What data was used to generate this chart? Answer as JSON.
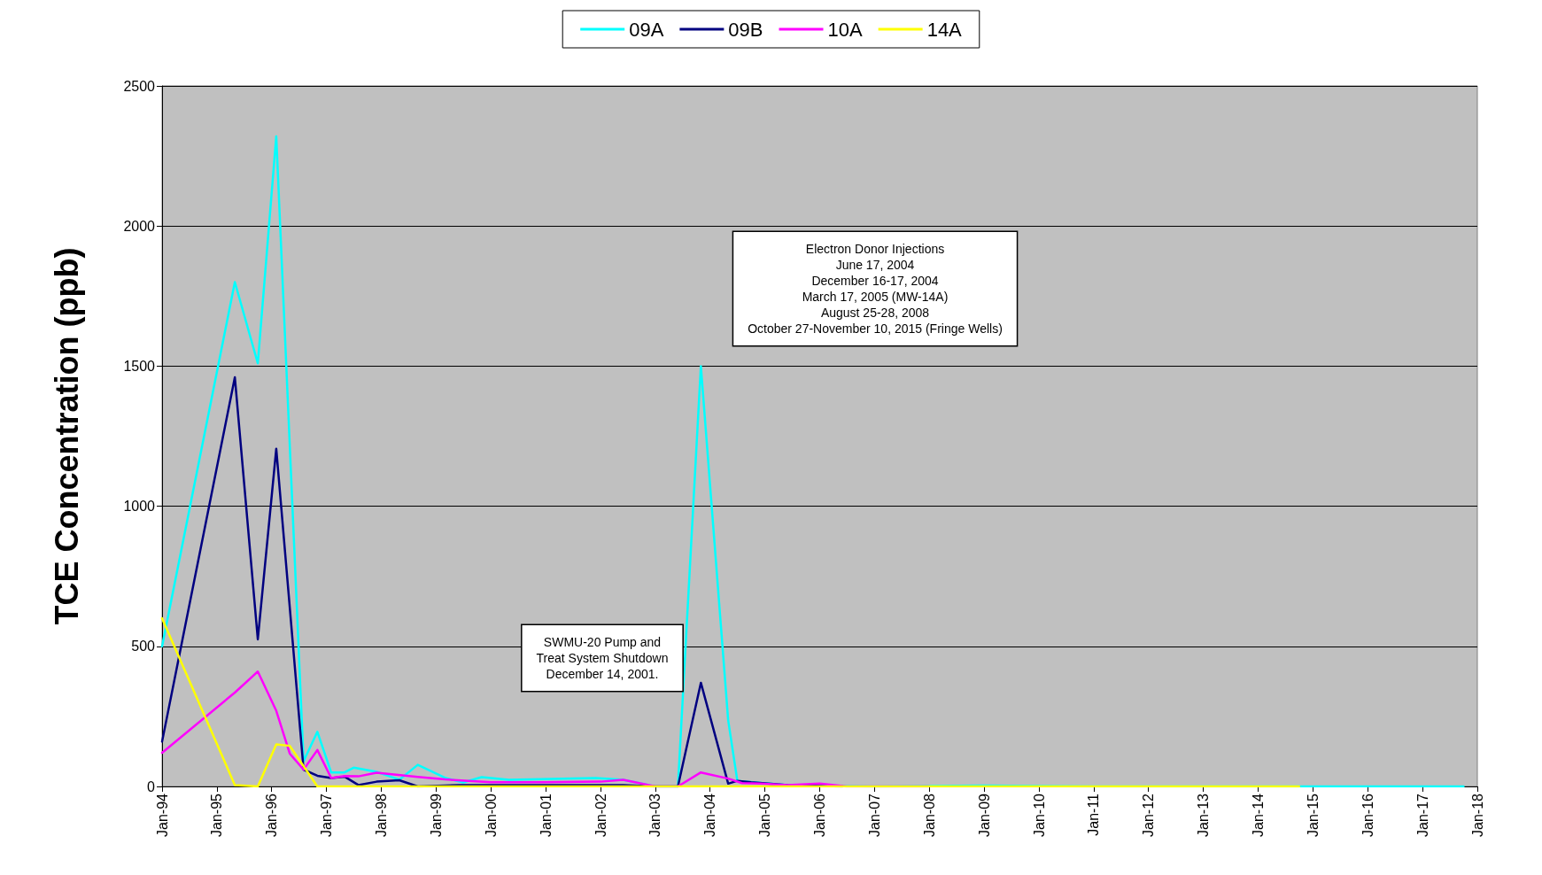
{
  "chart_data": {
    "type": "line",
    "ylabel": "TCE Concentration (ppb)",
    "xlim": [
      "1994-01",
      "2018-01"
    ],
    "xticks": [
      {
        "value": "1994-01",
        "label": "Jan-94"
      },
      {
        "value": "1995-01",
        "label": "Jan-95"
      },
      {
        "value": "1996-01",
        "label": "Jan-96"
      },
      {
        "value": "1997-01",
        "label": "Jan-97"
      },
      {
        "value": "1998-01",
        "label": "Jan-98"
      },
      {
        "value": "1999-01",
        "label": "Jan-99"
      },
      {
        "value": "2000-01",
        "label": "Jan-00"
      },
      {
        "value": "2001-01",
        "label": "Jan-01"
      },
      {
        "value": "2002-01",
        "label": "Jan-02"
      },
      {
        "value": "2003-01",
        "label": "Jan-03"
      },
      {
        "value": "2004-01",
        "label": "Jan-04"
      },
      {
        "value": "2005-01",
        "label": "Jan-05"
      },
      {
        "value": "2006-01",
        "label": "Jan-06"
      },
      {
        "value": "2007-01",
        "label": "Jan-07"
      },
      {
        "value": "2008-01",
        "label": "Jan-08"
      },
      {
        "value": "2009-01",
        "label": "Jan-09"
      },
      {
        "value": "2010-01",
        "label": "Jan-10"
      },
      {
        "value": "2011-01",
        "label": "Jan-11"
      },
      {
        "value": "2012-01",
        "label": "Jan-12"
      },
      {
        "value": "2013-01",
        "label": "Jan-13"
      },
      {
        "value": "2014-01",
        "label": "Jan-14"
      },
      {
        "value": "2015-01",
        "label": "Jan-15"
      },
      {
        "value": "2016-01",
        "label": "Jan-16"
      },
      {
        "value": "2017-01",
        "label": "Jan-17"
      },
      {
        "value": "2018-01",
        "label": "Jan-18"
      }
    ],
    "ylim": [
      0,
      2500
    ],
    "yticks": [
      0,
      500,
      1000,
      1500,
      2000,
      2500
    ],
    "grid": "y",
    "legend": "top",
    "marker": "none",
    "line_style": "solid",
    "series": [
      {
        "name": "09A",
        "color": "#00ffff",
        "x": [
          "1994-01",
          "1995-05",
          "1995-10",
          "1996-02",
          "1996-08",
          "1996-11",
          "1997-02",
          "1997-05",
          "1997-07",
          "1997-12",
          "1998-05",
          "1998-09",
          "1999-03",
          "1999-07",
          "1999-11",
          "2000-05",
          "2001-12",
          "2002-06",
          "2003-01",
          "2003-06",
          "2003-11",
          "2004-05",
          "2004-07",
          "2005-06",
          "2007-01",
          "2009-01",
          "2011-01",
          "2013-01",
          "2015-01",
          "2017-10"
        ],
        "values": [
          500,
          1800,
          1510,
          2320,
          90,
          195,
          50,
          50,
          67,
          52,
          24,
          77,
          31,
          14,
          33,
          24,
          30,
          24,
          0,
          0,
          1500,
          236,
          20,
          5,
          0,
          3,
          0,
          0,
          0,
          0
        ]
      },
      {
        "name": "09B",
        "color": "#000080",
        "x": [
          "1994-01",
          "1995-05",
          "1995-10",
          "1996-02",
          "1996-08",
          "1996-11",
          "1997-02",
          "1997-05",
          "1997-08",
          "1997-12",
          "1998-05",
          "1998-09",
          "1999-06",
          "2000-06",
          "2001-06",
          "2002-06",
          "2003-01",
          "2003-06",
          "2003-11",
          "2004-05",
          "2004-07",
          "2004-10",
          "2005-06",
          "2006-06"
        ],
        "values": [
          160,
          1460,
          525,
          1205,
          60,
          38,
          30,
          35,
          5,
          17,
          22,
          0,
          5,
          5,
          5,
          5,
          0,
          0,
          370,
          10,
          20,
          15,
          5,
          0
        ]
      },
      {
        "name": "10A",
        "color": "#ff00ff",
        "x": [
          "1994-01",
          "1995-05",
          "1995-10",
          "1996-02",
          "1996-05",
          "1996-08",
          "1996-11",
          "1997-02",
          "1997-05",
          "1997-08",
          "1997-12",
          "1998-09",
          "1999-03",
          "2000-01",
          "2001-01",
          "2002-01",
          "2002-06",
          "2003-01",
          "2003-06",
          "2003-11",
          "2004-05",
          "2004-08",
          "2004-12",
          "2005-06",
          "2006-01",
          "2006-07",
          "2008-01"
        ],
        "values": [
          120,
          335,
          410,
          270,
          117,
          60,
          130,
          30,
          37,
          36,
          49,
          34,
          25,
          15,
          15,
          17,
          24,
          0,
          0,
          50,
          28,
          12,
          10,
          5,
          10,
          0,
          0
        ]
      },
      {
        "name": "14A",
        "color": "#ffff00",
        "x": [
          "1994-01",
          "1995-05",
          "1995-10",
          "1996-02",
          "1996-05",
          "1996-11",
          "2000-01",
          "2005-01",
          "2010-01",
          "2014-10"
        ],
        "values": [
          600,
          5,
          0,
          150,
          145,
          0,
          0,
          0,
          0,
          0
        ]
      }
    ],
    "annotations": [
      "Electron Donor Injections\nJune 17, 2004\nDecember 16-17, 2004\nMarch 17, 2005 (MW-14A)\nAugust 25-28, 2008\nOctober 27-November 10, 2015 (Fringe Wells)",
      "SWMU-20 Pump and\nTreat System Shutdown\nDecember 14, 2001."
    ]
  }
}
